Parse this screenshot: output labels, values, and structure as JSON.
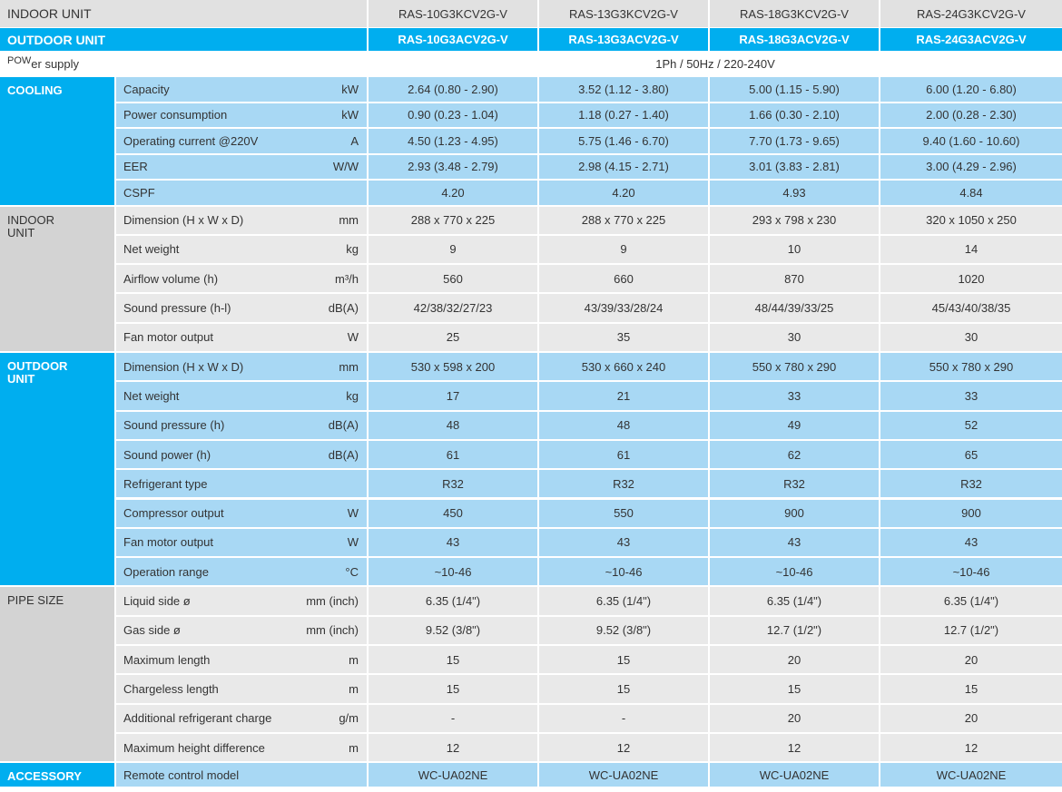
{
  "header": {
    "indoor_label": "INDOOR UNIT",
    "outdoor_label": "OUTDOOR UNIT",
    "indoor_models": [
      "RAS-10G3KCV2G-V",
      "RAS-13G3KCV2G-V",
      "RAS-18G3KCV2G-V",
      "RAS-24G3KCV2G-V"
    ],
    "outdoor_models": [
      "RAS-10G3ACV2G-V",
      "RAS-13G3ACV2G-V",
      "RAS-18G3ACV2G-V",
      "RAS-24G3ACV2G-V"
    ]
  },
  "power_supply": {
    "label_prefix": "POW",
    "label_rest": "er supply",
    "value": "1Ph / 50Hz / 220-240V"
  },
  "sections": [
    {
      "title": "COOLING",
      "rows": [
        {
          "label": "Capacity",
          "unit": "kW",
          "values": [
            "2.64 (0.80 - 2.90)",
            "3.52 (1.12 - 3.80)",
            "5.00 (1.15 - 5.90)",
            "6.00 (1.20 - 6.80)"
          ]
        },
        {
          "label": "Power consumption",
          "unit": "kW",
          "values": [
            "0.90 (0.23 - 1.04)",
            "1.18 (0.27 - 1.40)",
            "1.66 (0.30 - 2.10)",
            "2.00 (0.28 - 2.30)"
          ]
        },
        {
          "label": "Operating current @220V",
          "unit": "A",
          "values": [
            "4.50 (1.23 - 4.95)",
            "5.75 (1.46 - 6.70)",
            "7.70 (1.73 - 9.65)",
            "9.40 (1.60 - 10.60)"
          ]
        },
        {
          "label": "EER",
          "unit": "W/W",
          "values": [
            "2.93 (3.48 - 2.79)",
            "2.98 (4.15 - 2.71)",
            "3.01 (3.83 - 2.81)",
            "3.00 (4.29 - 2.96)"
          ]
        },
        {
          "label": "CSPF",
          "unit": "",
          "values": [
            "4.20",
            "4.20",
            "4.93",
            "4.84"
          ]
        }
      ]
    },
    {
      "title": "INDOOR\nUNIT",
      "rows": [
        {
          "label": "Dimension (H x W x D)",
          "unit": "mm",
          "values": [
            "288 x 770 x 225",
            "288 x 770 x 225",
            "293 x 798 x 230",
            "320 x 1050 x 250"
          ]
        },
        {
          "label": "Net weight",
          "unit": "kg",
          "values": [
            "9",
            "9",
            "10",
            "14"
          ]
        },
        {
          "label": "Airflow volume (h)",
          "unit": "m³/h",
          "values": [
            "560",
            "660",
            "870",
            "1020"
          ]
        },
        {
          "label": "Sound pressure (h-l)",
          "unit": "dB(A)",
          "values": [
            "42/38/32/27/23",
            "43/39/33/28/24",
            "48/44/39/33/25",
            "45/43/40/38/35"
          ]
        },
        {
          "label": "Fan motor output",
          "unit": "W",
          "values": [
            "25",
            "35",
            "30",
            "30"
          ]
        }
      ]
    },
    {
      "title": "OUTDOOR\nUNIT",
      "rows": [
        {
          "label": "Dimension (H x W x D)",
          "unit": "mm",
          "values": [
            "530 x 598 x 200",
            "530 x 660 x 240",
            "550 x 780 x 290",
            "550 x 780 x 290"
          ]
        },
        {
          "label": "Net weight",
          "unit": "kg",
          "values": [
            "17",
            "21",
            "33",
            "33"
          ]
        },
        {
          "label": "Sound pressure (h)",
          "unit": "dB(A)",
          "values": [
            "48",
            "48",
            "49",
            "52"
          ]
        },
        {
          "label": "Sound power (h)",
          "unit": "dB(A)",
          "values": [
            "61",
            "61",
            "62",
            "65"
          ]
        },
        {
          "label": "Refrigerant type",
          "unit": "",
          "values": [
            "R32",
            "R32",
            "R32",
            "R32"
          ]
        },
        {
          "label": "Compressor output",
          "unit": "W",
          "values": [
            "450",
            "550",
            "900",
            "900"
          ]
        },
        {
          "label": "Fan motor output",
          "unit": "W",
          "values": [
            "43",
            "43",
            "43",
            "43"
          ]
        },
        {
          "label": "Operation range",
          "unit": "°C",
          "values": [
            "~10-46",
            "~10-46",
            "~10-46",
            "~10-46"
          ]
        }
      ]
    },
    {
      "title": "PIPE SIZE",
      "rows": [
        {
          "label": "Liquid side ø",
          "unit": "mm (inch)",
          "values": [
            "6.35 (1/4\")",
            "6.35 (1/4\")",
            "6.35 (1/4\")",
            "6.35 (1/4\")"
          ]
        },
        {
          "label": "Gas side ø",
          "unit": "mm (inch)",
          "values": [
            "9.52 (3/8\")",
            "9.52 (3/8\")",
            "12.7 (1/2\")",
            "12.7 (1/2\")"
          ]
        },
        {
          "label": "Maximum length",
          "unit": "m",
          "values": [
            "15",
            "15",
            "20",
            "20"
          ]
        },
        {
          "label": "Chargeless length",
          "unit": "m",
          "values": [
            "15",
            "15",
            "15",
            "15"
          ]
        },
        {
          "label": "Additional refrigerant charge",
          "unit": "g/m",
          "values": [
            "-",
            "-",
            "20",
            "20"
          ]
        },
        {
          "label": "Maximum height difference",
          "unit": "m",
          "values": [
            "12",
            "12",
            "12",
            "12"
          ]
        }
      ]
    },
    {
      "title": "ACCESSORY",
      "rows": [
        {
          "label": "Remote control model",
          "unit": "",
          "values": [
            "WC-UA02NE",
            "WC-UA02NE",
            "WC-UA02NE",
            "WC-UA02NE"
          ]
        }
      ]
    }
  ],
  "colors": {
    "section_blue": "#00aeef",
    "row_blue": "#a8d8f4",
    "section_gray": "#d3d3d3",
    "row_gray": "#e9e9e9",
    "header_gray": "#e1e1e1",
    "line": "#ffffff"
  }
}
